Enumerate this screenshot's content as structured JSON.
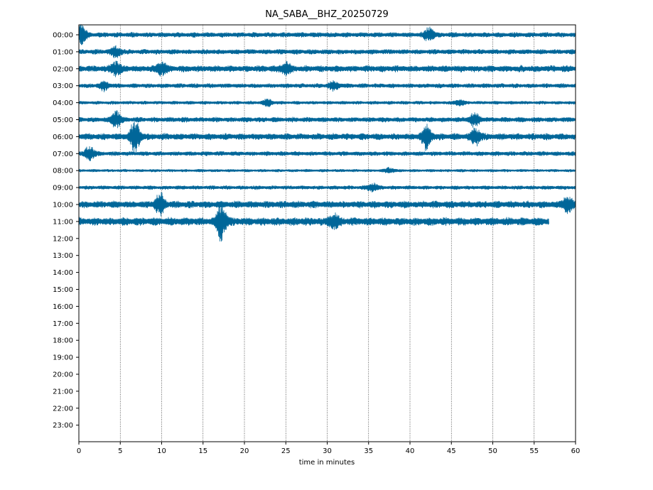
{
  "chart_data": {
    "type": "line",
    "title": "NA_SABA__BHZ_20250729",
    "xlabel": "time in minutes",
    "ylabel": "",
    "xlim": [
      0,
      60
    ],
    "xticks": [
      0,
      5,
      10,
      15,
      20,
      25,
      30,
      35,
      40,
      45,
      50,
      55,
      60
    ],
    "yticks": [
      "00:00",
      "01:00",
      "02:00",
      "03:00",
      "04:00",
      "05:00",
      "06:00",
      "07:00",
      "08:00",
      "09:00",
      "10:00",
      "11:00",
      "12:00",
      "13:00",
      "14:00",
      "15:00",
      "16:00",
      "17:00",
      "18:00",
      "19:00",
      "20:00",
      "21:00",
      "22:00",
      "23:00"
    ],
    "grid": "vertical dotted lines at each x tick",
    "trace_color": "#006699",
    "series": [
      {
        "hour": "00:00",
        "end_minute": 60,
        "amplitude": 1.0,
        "events": [
          {
            "minute": 0.3,
            "amplitude": 3.5
          },
          {
            "minute": 42.3,
            "amplitude": 2.5
          }
        ]
      },
      {
        "hour": "01:00",
        "end_minute": 60,
        "amplitude": 1.0,
        "events": [
          {
            "minute": 4.5,
            "amplitude": 2.0
          }
        ]
      },
      {
        "hour": "02:00",
        "end_minute": 60,
        "amplitude": 1.3,
        "events": [
          {
            "minute": 4.5,
            "amplitude": 1.8
          },
          {
            "minute": 10.0,
            "amplitude": 1.8
          },
          {
            "minute": 25.0,
            "amplitude": 1.5
          }
        ]
      },
      {
        "hour": "03:00",
        "end_minute": 60,
        "amplitude": 0.9,
        "events": [
          {
            "minute": 3.0,
            "amplitude": 1.8
          },
          {
            "minute": 30.8,
            "amplitude": 1.8
          }
        ]
      },
      {
        "hour": "04:00",
        "end_minute": 60,
        "amplitude": 0.7,
        "events": [
          {
            "minute": 22.8,
            "amplitude": 1.8
          },
          {
            "minute": 46.0,
            "amplitude": 1.5
          }
        ]
      },
      {
        "hour": "05:00",
        "end_minute": 60,
        "amplitude": 1.0,
        "events": [
          {
            "minute": 4.5,
            "amplitude": 2.8
          },
          {
            "minute": 47.8,
            "amplitude": 2.4
          }
        ]
      },
      {
        "hour": "06:00",
        "end_minute": 60,
        "amplitude": 1.3,
        "events": [
          {
            "minute": 6.8,
            "amplitude": 4.5
          },
          {
            "minute": 42.0,
            "amplitude": 3.2
          },
          {
            "minute": 48.0,
            "amplitude": 2.2
          }
        ]
      },
      {
        "hour": "07:00",
        "end_minute": 60,
        "amplitude": 0.9,
        "events": [
          {
            "minute": 1.3,
            "amplitude": 2.8
          }
        ]
      },
      {
        "hour": "08:00",
        "end_minute": 60,
        "amplitude": 0.6,
        "events": [
          {
            "minute": 37.5,
            "amplitude": 1.5
          }
        ]
      },
      {
        "hour": "09:00",
        "end_minute": 60,
        "amplitude": 0.8,
        "events": [
          {
            "minute": 35.5,
            "amplitude": 1.8
          }
        ]
      },
      {
        "hour": "10:00",
        "end_minute": 60,
        "amplitude": 1.4,
        "events": [
          {
            "minute": 9.8,
            "amplitude": 2.5
          },
          {
            "minute": 59.0,
            "amplitude": 2.0
          }
        ]
      },
      {
        "hour": "11:00",
        "end_minute": 56.8,
        "amplitude": 1.6,
        "events": [
          {
            "minute": 17.2,
            "amplitude": 4.0
          },
          {
            "minute": 30.8,
            "amplitude": 1.5
          }
        ]
      }
    ]
  }
}
